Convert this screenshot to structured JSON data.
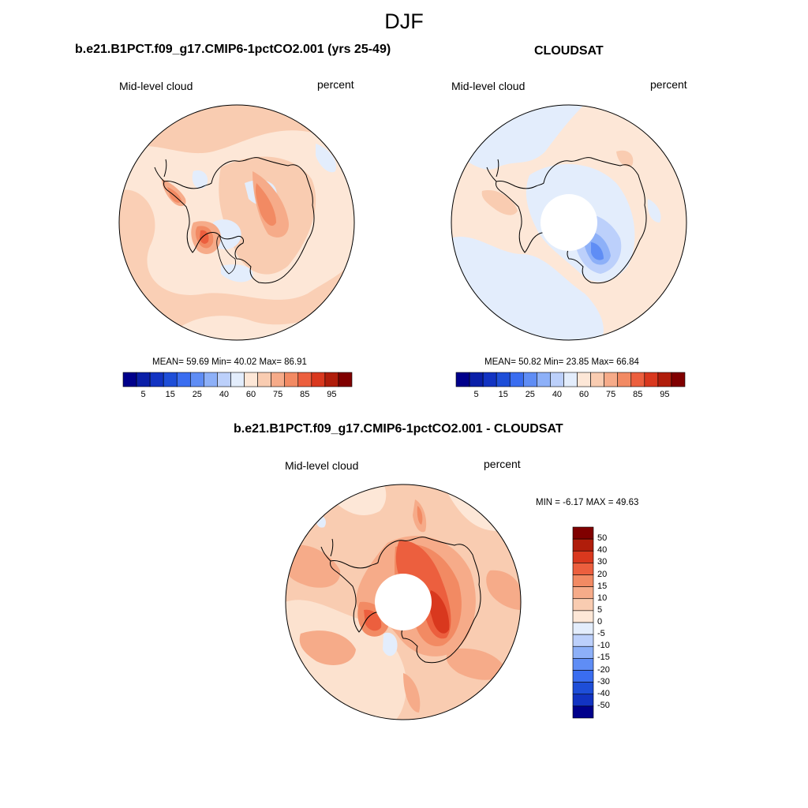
{
  "figure": {
    "title": "DJF"
  },
  "panels": [
    {
      "id": "model",
      "title": "b.e21.B1PCT.f09_g17.CMIP6-1pctCO2.001 (yrs 25-49)",
      "left_label": "Mid-level cloud",
      "right_label": "percent",
      "stats_text": "MEAN=  59.69  Min=  40.02  Max=  86.91",
      "colorbar": {
        "colors": [
          "#00008b",
          "#0a1fa8",
          "#1233c2",
          "#1e4ed8",
          "#3a6df0",
          "#5f8df5",
          "#8db0f8",
          "#bcd0fb",
          "#e3edfc",
          "#fde7d7",
          "#f9ccb1",
          "#f6ab89",
          "#f28a63",
          "#ec5f3e",
          "#d9381e",
          "#b01d0b",
          "#800000"
        ],
        "labels": [
          "5",
          "15",
          "25",
          "40",
          "60",
          "75",
          "85",
          "95"
        ]
      }
    },
    {
      "id": "cloudsat",
      "title": "CLOUDSAT",
      "left_label": "Mid-level cloud",
      "right_label": "percent",
      "stats_text": "MEAN=  50.82  Min=  23.85  Max=  66.84",
      "colorbar": {
        "colors": [
          "#00008b",
          "#0a1fa8",
          "#1233c2",
          "#1e4ed8",
          "#3a6df0",
          "#5f8df5",
          "#8db0f8",
          "#bcd0fb",
          "#e3edfc",
          "#fde7d7",
          "#f9ccb1",
          "#f6ab89",
          "#f28a63",
          "#ec5f3e",
          "#d9381e",
          "#b01d0b",
          "#800000"
        ],
        "labels": [
          "5",
          "15",
          "25",
          "40",
          "60",
          "75",
          "85",
          "95"
        ]
      }
    },
    {
      "id": "difference",
      "title": "b.e21.B1PCT.f09_g17.CMIP6-1pctCO2.001 - CLOUDSAT",
      "left_label": "Mid-level cloud",
      "right_label": "percent",
      "stats_text": "MIN =  -6.17 MAX =  49.63",
      "colorbar": {
        "colors": [
          "#800000",
          "#b01d0b",
          "#d9381e",
          "#ec5f3e",
          "#f28a63",
          "#f6ab89",
          "#f9ccb1",
          "#fde7d7",
          "#e3edfc",
          "#bcd0fb",
          "#8db0f8",
          "#5f8df5",
          "#3a6df0",
          "#1e4ed8",
          "#1233c2",
          "#00008b"
        ],
        "labels": [
          "50",
          "40",
          "30",
          "20",
          "15",
          "10",
          "5",
          "0",
          "-5",
          "-10",
          "-15",
          "-20",
          "-30",
          "-40",
          "-50"
        ]
      }
    }
  ],
  "map_colors": {
    "light_orange": "#fde7d7",
    "peach": "#f9ccb1",
    "salmon": "#f6ab89",
    "orange": "#f28a63",
    "red": "#ec5f3e",
    "dark_red": "#d9381e",
    "light_blue": "#e3edfc",
    "pale_blue": "#bcd0fb",
    "mid_blue": "#8db0f8",
    "blue": "#5f8df5"
  }
}
